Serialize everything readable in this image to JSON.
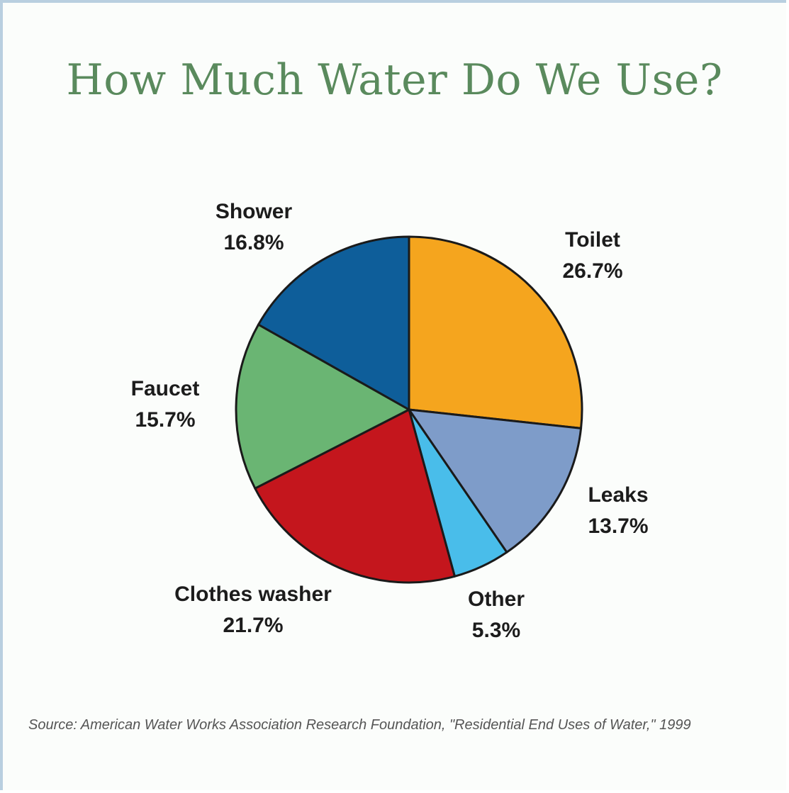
{
  "chart_data": {
    "type": "pie",
    "title": "How Much Water Do We Use?",
    "slices": [
      {
        "name": "Toilet",
        "value": 26.7,
        "label": "26.7%",
        "color": "#f5a51e"
      },
      {
        "name": "Leaks",
        "value": 13.7,
        "label": "13.7%",
        "color": "#7e9cc9"
      },
      {
        "name": "Other",
        "value": 5.3,
        "label": "5.3%",
        "color": "#49bdea"
      },
      {
        "name": "Clothes washer",
        "value": 21.7,
        "label": "21.7%",
        "color": "#c4161d"
      },
      {
        "name": "Faucet",
        "value": 15.7,
        "label": "15.7%",
        "color": "#6ab573"
      },
      {
        "name": "Shower",
        "value": 16.8,
        "label": "16.8%",
        "color": "#0e5e9a"
      }
    ],
    "source": "Source: American Water Works Association Research Foundation, \"Residential End Uses of Water,\" 1999"
  },
  "colors": {
    "title": "#5a8a5d",
    "frame_border": "#b9cfe0"
  }
}
